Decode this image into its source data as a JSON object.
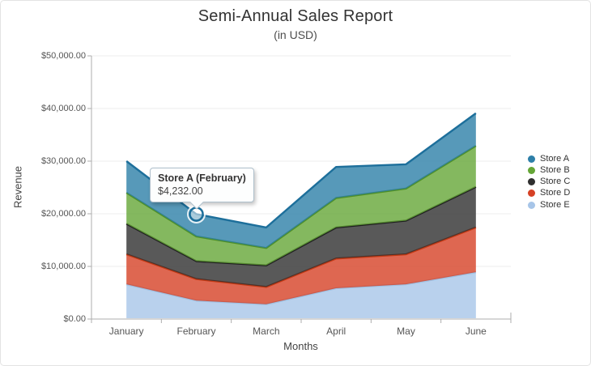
{
  "header": {
    "title": "Semi-Annual Sales Report",
    "subtitle": "(in USD)"
  },
  "y_axis": {
    "title": "Revenue",
    "tick_labels": [
      "$50,000.00",
      "$40,000.00",
      "$30,000.00",
      "$20,000.00",
      "$10,000.00",
      "$0.00"
    ]
  },
  "x_axis": {
    "title": "Months",
    "tick_labels": [
      "January",
      "February",
      "March",
      "April",
      "May",
      "June"
    ]
  },
  "legend": {
    "items": [
      {
        "label": "Store A",
        "color": "#2d7fa8"
      },
      {
        "label": "Store B",
        "color": "#65a637"
      },
      {
        "label": "Store C",
        "color": "#2f2f2f"
      },
      {
        "label": "Store D",
        "color": "#d64125"
      },
      {
        "label": "Store E",
        "color": "#a7c5e8"
      }
    ]
  },
  "tooltip": {
    "title": "Store A (February)",
    "value": "$4,232.00"
  },
  "chart_data": {
    "type": "area",
    "stacked": true,
    "title": "Semi-Annual Sales Report",
    "subtitle": "(in USD)",
    "xlabel": "Months",
    "ylabel": "Revenue",
    "ylim": [
      0,
      50000
    ],
    "grid": true,
    "legend_position": "right",
    "categories": [
      "January",
      "February",
      "March",
      "April",
      "May",
      "June"
    ],
    "series": [
      {
        "name": "Store E",
        "color": "#a7c5e8",
        "line": "#9fc2e4",
        "values": [
          6600,
          3500,
          2800,
          5850,
          6600,
          8900
        ]
      },
      {
        "name": "Store D",
        "color": "#d64125",
        "line": "#c63a14",
        "values": [
          5700,
          4100,
          3300,
          5650,
          5700,
          8500
        ]
      },
      {
        "name": "Store C",
        "color": "#2f2f2f",
        "line": "#1f1f1f",
        "values": [
          5800,
          3400,
          4100,
          5900,
          6400,
          7700
        ]
      },
      {
        "name": "Store B",
        "color": "#65a637",
        "line": "#4f8f26",
        "values": [
          5900,
          4700,
          3300,
          5600,
          6100,
          7800
        ]
      },
      {
        "name": "Store A",
        "color": "#2d7fa8",
        "line": "#1d6f9b",
        "values": [
          6000,
          4232,
          3900,
          5900,
          4600,
          6200
        ]
      }
    ],
    "highlighted_point": {
      "series": "Store A",
      "category": "February",
      "value": 4232,
      "label": "$4,232.00"
    }
  },
  "style": {
    "grid_color": "#ededed",
    "axis_color": "#adadad",
    "fill_opacity": 0.8
  }
}
